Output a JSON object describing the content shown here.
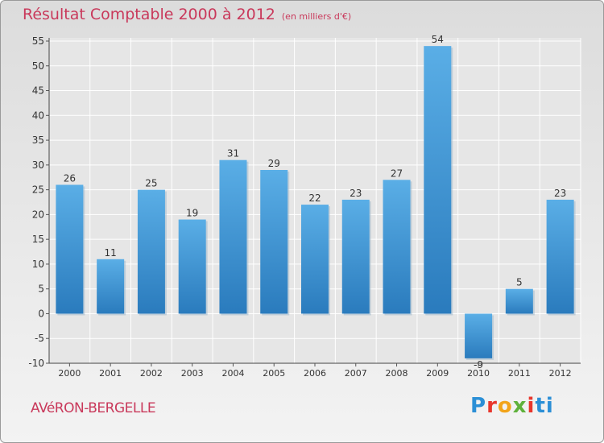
{
  "chart_data": {
    "type": "bar",
    "title": "Résultat Comptable 2000 à 2012",
    "subtitle": "(en milliers d'€)",
    "categories": [
      "2000",
      "2001",
      "2002",
      "2003",
      "2004",
      "2005",
      "2006",
      "2007",
      "2008",
      "2009",
      "2010",
      "2011",
      "2012"
    ],
    "values": [
      26,
      11,
      25,
      19,
      31,
      29,
      22,
      23,
      27,
      54,
      -9,
      5,
      23
    ],
    "data_labels": [
      "26",
      "11",
      "25",
      "19",
      "31",
      "29",
      "22",
      "23",
      "27",
      "54",
      "-9",
      "5",
      "23"
    ],
    "y_ticks": [
      -10,
      -5,
      0,
      5,
      10,
      15,
      20,
      25,
      30,
      35,
      40,
      45,
      50,
      55
    ],
    "ylim": [
      -10,
      55
    ],
    "xlabel": "",
    "ylabel": "",
    "grid": true,
    "colors": {
      "bar": "#3a93d4",
      "bar_light": "#5aaee6",
      "bar_dark": "#2a7bbd",
      "grid": "#ffffff",
      "title": "#c9395b"
    }
  },
  "footer": {
    "commune": "AVéRON-BERGELLE",
    "logo_letters": [
      "P",
      "r",
      "o",
      "x",
      "i",
      "t",
      "i"
    ]
  }
}
